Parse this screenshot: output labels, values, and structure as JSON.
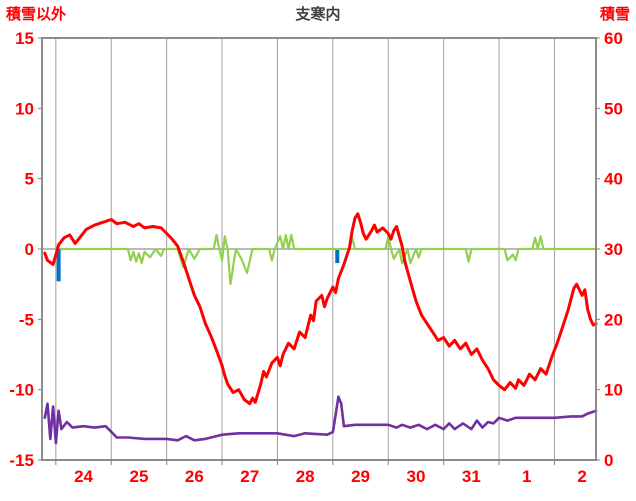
{
  "header": {
    "left_axis_title": "積雪以外",
    "chart_title": "支寒内",
    "right_axis_title": "積雪"
  },
  "colors": {
    "axis_text": "#ff0000",
    "title_text": "#404040",
    "grid": "#a0a0a0",
    "border": "#808080",
    "zero_line": "#909090",
    "red_series": "#ff0000",
    "green_series": "#92d050",
    "purple_series": "#7030a0",
    "blue_series": "#0070c0"
  },
  "chart_data": {
    "type": "line",
    "title": "支寒内",
    "left_axis": {
      "label": "積雪以外",
      "range": [
        -15,
        15
      ],
      "ticks": [
        15,
        10,
        5,
        0,
        -5,
        -10,
        -15
      ]
    },
    "right_axis": {
      "label": "積雪",
      "range": [
        0,
        60
      ],
      "ticks": [
        60,
        50,
        40,
        30,
        20,
        10,
        0
      ]
    },
    "x_axis": {
      "range": [
        -0.25,
        9.75
      ],
      "tick_labels": [
        "24",
        "25",
        "26",
        "27",
        "28",
        "29",
        "30",
        "31",
        "1",
        "2"
      ],
      "gridline_positions": [
        0,
        1,
        2,
        3,
        4,
        5,
        6,
        7,
        8,
        9
      ],
      "label_positions": [
        0.5,
        1.5,
        2.5,
        3.5,
        4.5,
        5.5,
        6.5,
        7.5,
        8.5,
        9.5
      ]
    },
    "zero_line": true,
    "grid": "vertical-only",
    "legend": "none",
    "series": [
      {
        "name": "blue-bars",
        "kind": "bar",
        "axis": "left",
        "color": "#0070c0",
        "width": 4,
        "points": [
          [
            0.05,
            -2.3
          ],
          [
            5.08,
            -1.0
          ]
        ]
      },
      {
        "name": "green-line",
        "kind": "line",
        "axis": "left",
        "color": "#92d050",
        "width": 2.2,
        "points": [
          [
            0.1,
            0
          ],
          [
            1.3,
            0
          ],
          [
            1.35,
            -0.8
          ],
          [
            1.4,
            -0.2
          ],
          [
            1.45,
            -0.9
          ],
          [
            1.5,
            -0.3
          ],
          [
            1.55,
            -1.0
          ],
          [
            1.6,
            -0.2
          ],
          [
            1.7,
            -0.6
          ],
          [
            1.8,
            0
          ],
          [
            1.9,
            -0.5
          ],
          [
            1.95,
            0
          ],
          [
            2.2,
            0
          ],
          [
            2.3,
            -1.3
          ],
          [
            2.4,
            0
          ],
          [
            2.5,
            -0.7
          ],
          [
            2.6,
            0
          ],
          [
            2.85,
            0
          ],
          [
            2.9,
            1.0
          ],
          [
            2.95,
            0
          ],
          [
            3.0,
            -0.8
          ],
          [
            3.05,
            0.9
          ],
          [
            3.1,
            0
          ],
          [
            3.15,
            -2.5
          ],
          [
            3.25,
            0
          ],
          [
            3.35,
            -0.7
          ],
          [
            3.45,
            -1.7
          ],
          [
            3.55,
            0
          ],
          [
            3.85,
            0
          ],
          [
            3.9,
            -0.8
          ],
          [
            3.95,
            0
          ],
          [
            4.05,
            0.9
          ],
          [
            4.1,
            0
          ],
          [
            4.15,
            1.0
          ],
          [
            4.2,
            0
          ],
          [
            4.25,
            1.0
          ],
          [
            4.3,
            0
          ],
          [
            4.5,
            0
          ],
          [
            5.3,
            0
          ],
          [
            5.35,
            0.8
          ],
          [
            5.4,
            0
          ],
          [
            5.95,
            0
          ],
          [
            6.0,
            0.9
          ],
          [
            6.05,
            0
          ],
          [
            6.1,
            -0.7
          ],
          [
            6.2,
            0
          ],
          [
            6.25,
            -1.0
          ],
          [
            6.35,
            0
          ],
          [
            6.4,
            -1.0
          ],
          [
            6.5,
            0
          ],
          [
            6.55,
            -0.6
          ],
          [
            6.6,
            0
          ],
          [
            7.4,
            0
          ],
          [
            7.45,
            -0.9
          ],
          [
            7.5,
            0
          ],
          [
            8.1,
            0
          ],
          [
            8.15,
            -0.8
          ],
          [
            8.25,
            -0.4
          ],
          [
            8.3,
            -0.8
          ],
          [
            8.35,
            0
          ],
          [
            8.6,
            0
          ],
          [
            8.65,
            0.8
          ],
          [
            8.7,
            0
          ],
          [
            8.75,
            0.9
          ],
          [
            8.8,
            0
          ],
          [
            9.75,
            0
          ]
        ]
      },
      {
        "name": "purple-line",
        "kind": "line",
        "axis": "left",
        "color": "#7030a0",
        "width": 2.6,
        "points": [
          [
            -0.2,
            -12.0
          ],
          [
            -0.15,
            -11.0
          ],
          [
            -0.1,
            -13.5
          ],
          [
            -0.05,
            -11.2
          ],
          [
            0.0,
            -13.8
          ],
          [
            0.05,
            -11.5
          ],
          [
            0.1,
            -12.8
          ],
          [
            0.2,
            -12.3
          ],
          [
            0.3,
            -12.7
          ],
          [
            0.5,
            -12.6
          ],
          [
            0.7,
            -12.7
          ],
          [
            0.9,
            -12.6
          ],
          [
            1.0,
            -13.0
          ],
          [
            1.1,
            -13.4
          ],
          [
            1.3,
            -13.4
          ],
          [
            1.6,
            -13.5
          ],
          [
            2.0,
            -13.5
          ],
          [
            2.2,
            -13.6
          ],
          [
            2.35,
            -13.3
          ],
          [
            2.5,
            -13.6
          ],
          [
            2.7,
            -13.5
          ],
          [
            3.0,
            -13.2
          ],
          [
            3.3,
            -13.1
          ],
          [
            3.6,
            -13.1
          ],
          [
            4.0,
            -13.1
          ],
          [
            4.3,
            -13.3
          ],
          [
            4.5,
            -13.1
          ],
          [
            4.9,
            -13.2
          ],
          [
            5.0,
            -13.0
          ],
          [
            5.05,
            -11.8
          ],
          [
            5.1,
            -10.5
          ],
          [
            5.15,
            -11.0
          ],
          [
            5.2,
            -12.6
          ],
          [
            5.4,
            -12.5
          ],
          [
            5.7,
            -12.5
          ],
          [
            6.0,
            -12.5
          ],
          [
            6.15,
            -12.7
          ],
          [
            6.25,
            -12.5
          ],
          [
            6.4,
            -12.7
          ],
          [
            6.55,
            -12.5
          ],
          [
            6.7,
            -12.8
          ],
          [
            6.85,
            -12.5
          ],
          [
            7.0,
            -12.8
          ],
          [
            7.1,
            -12.4
          ],
          [
            7.2,
            -12.8
          ],
          [
            7.35,
            -12.4
          ],
          [
            7.5,
            -12.8
          ],
          [
            7.6,
            -12.2
          ],
          [
            7.7,
            -12.7
          ],
          [
            7.8,
            -12.3
          ],
          [
            7.9,
            -12.4
          ],
          [
            8.0,
            -12.0
          ],
          [
            8.15,
            -12.2
          ],
          [
            8.3,
            -12.0
          ],
          [
            8.6,
            -12.0
          ],
          [
            9.0,
            -12.0
          ],
          [
            9.3,
            -11.9
          ],
          [
            9.5,
            -11.9
          ],
          [
            9.6,
            -11.7
          ],
          [
            9.75,
            -11.5
          ]
        ]
      },
      {
        "name": "red-line",
        "kind": "line",
        "axis": "left",
        "color": "#ff0000",
        "width": 3,
        "points": [
          [
            -0.2,
            -0.3
          ],
          [
            -0.15,
            -0.8
          ],
          [
            -0.05,
            -1.1
          ],
          [
            0.05,
            0.3
          ],
          [
            0.15,
            0.8
          ],
          [
            0.25,
            1.0
          ],
          [
            0.35,
            0.4
          ],
          [
            0.45,
            0.9
          ],
          [
            0.55,
            1.4
          ],
          [
            0.7,
            1.7
          ],
          [
            0.85,
            1.9
          ],
          [
            1.0,
            2.1
          ],
          [
            1.1,
            1.8
          ],
          [
            1.25,
            1.9
          ],
          [
            1.4,
            1.6
          ],
          [
            1.5,
            1.8
          ],
          [
            1.6,
            1.5
          ],
          [
            1.75,
            1.6
          ],
          [
            1.9,
            1.5
          ],
          [
            2.0,
            1.1
          ],
          [
            2.1,
            0.7
          ],
          [
            2.2,
            0.2
          ],
          [
            2.3,
            -0.9
          ],
          [
            2.4,
            -2.1
          ],
          [
            2.5,
            -3.3
          ],
          [
            2.6,
            -4.1
          ],
          [
            2.7,
            -5.3
          ],
          [
            2.8,
            -6.2
          ],
          [
            2.9,
            -7.2
          ],
          [
            3.0,
            -8.3
          ],
          [
            3.05,
            -9.0
          ],
          [
            3.1,
            -9.6
          ],
          [
            3.2,
            -10.2
          ],
          [
            3.3,
            -10.0
          ],
          [
            3.4,
            -10.7
          ],
          [
            3.5,
            -11.0
          ],
          [
            3.55,
            -10.6
          ],
          [
            3.6,
            -10.9
          ],
          [
            3.7,
            -9.6
          ],
          [
            3.75,
            -8.7
          ],
          [
            3.8,
            -9.1
          ],
          [
            3.9,
            -8.1
          ],
          [
            4.0,
            -7.7
          ],
          [
            4.05,
            -8.3
          ],
          [
            4.1,
            -7.5
          ],
          [
            4.2,
            -6.7
          ],
          [
            4.3,
            -7.1
          ],
          [
            4.4,
            -5.9
          ],
          [
            4.5,
            -6.3
          ],
          [
            4.6,
            -4.7
          ],
          [
            4.65,
            -5.1
          ],
          [
            4.7,
            -3.7
          ],
          [
            4.8,
            -3.3
          ],
          [
            4.85,
            -4.1
          ],
          [
            4.9,
            -3.5
          ],
          [
            5.0,
            -2.7
          ],
          [
            5.05,
            -3.1
          ],
          [
            5.1,
            -2.1
          ],
          [
            5.2,
            -1.1
          ],
          [
            5.3,
            0.1
          ],
          [
            5.35,
            1.3
          ],
          [
            5.4,
            2.2
          ],
          [
            5.45,
            2.5
          ],
          [
            5.5,
            1.9
          ],
          [
            5.55,
            1.1
          ],
          [
            5.6,
            0.7
          ],
          [
            5.7,
            1.3
          ],
          [
            5.75,
            1.7
          ],
          [
            5.8,
            1.2
          ],
          [
            5.9,
            1.5
          ],
          [
            6.0,
            1.1
          ],
          [
            6.05,
            0.7
          ],
          [
            6.1,
            1.3
          ],
          [
            6.15,
            1.6
          ],
          [
            6.2,
            0.9
          ],
          [
            6.25,
            0.2
          ],
          [
            6.3,
            -0.9
          ],
          [
            6.4,
            -2.3
          ],
          [
            6.5,
            -3.7
          ],
          [
            6.6,
            -4.7
          ],
          [
            6.7,
            -5.3
          ],
          [
            6.8,
            -5.9
          ],
          [
            6.9,
            -6.5
          ],
          [
            7.0,
            -6.3
          ],
          [
            7.1,
            -6.9
          ],
          [
            7.2,
            -6.5
          ],
          [
            7.3,
            -7.1
          ],
          [
            7.4,
            -6.7
          ],
          [
            7.5,
            -7.5
          ],
          [
            7.6,
            -7.1
          ],
          [
            7.7,
            -7.9
          ],
          [
            7.8,
            -8.5
          ],
          [
            7.9,
            -9.3
          ],
          [
            8.0,
            -9.7
          ],
          [
            8.1,
            -10.0
          ],
          [
            8.2,
            -9.5
          ],
          [
            8.3,
            -9.9
          ],
          [
            8.35,
            -9.3
          ],
          [
            8.45,
            -9.7
          ],
          [
            8.55,
            -8.9
          ],
          [
            8.65,
            -9.3
          ],
          [
            8.75,
            -8.5
          ],
          [
            8.85,
            -8.9
          ],
          [
            8.95,
            -7.7
          ],
          [
            9.05,
            -6.7
          ],
          [
            9.15,
            -5.5
          ],
          [
            9.25,
            -4.3
          ],
          [
            9.35,
            -2.8
          ],
          [
            9.4,
            -2.5
          ],
          [
            9.5,
            -3.3
          ],
          [
            9.55,
            -2.9
          ],
          [
            9.6,
            -4.3
          ],
          [
            9.65,
            -5.0
          ],
          [
            9.7,
            -5.4
          ],
          [
            9.75,
            -5.3
          ]
        ]
      }
    ]
  }
}
